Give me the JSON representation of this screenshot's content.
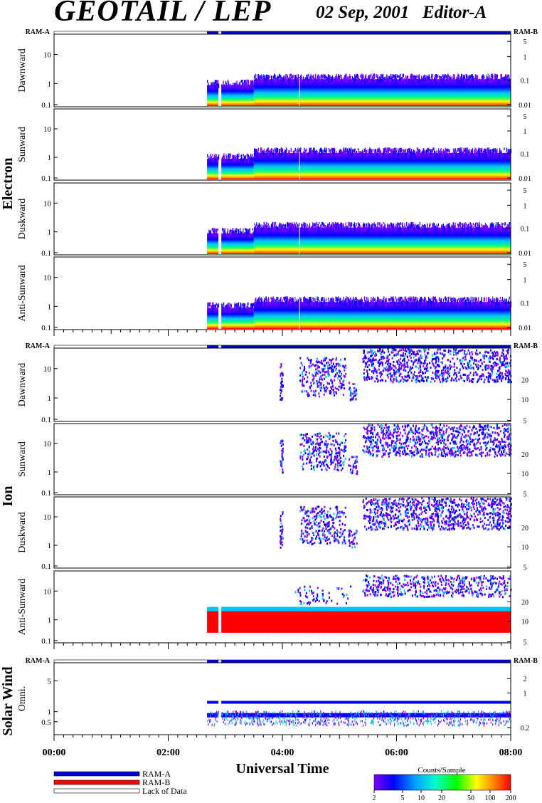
{
  "header": {
    "title": "GEOTAIL / LEP",
    "date_editor": "02 Sep, 2001   Editor-A"
  },
  "ram_labels": {
    "left": "RAM-A",
    "right": "RAM-B"
  },
  "groups": {
    "electron": "Electron",
    "ion": "Ion",
    "solar_wind": "Solar Wind"
  },
  "colors": {
    "ram_a": "#0000cc",
    "ram_b": "#ff0000",
    "spectrogram_scale": [
      "#8000ff",
      "#0000ff",
      "#00a0ff",
      "#00ffcc",
      "#00ff00",
      "#ffff00",
      "#ff8000",
      "#ff0000"
    ]
  },
  "chart_data": [
    {
      "type": "heatmap",
      "group": "Electron",
      "panels": [
        {
          "name": "Dawnward",
          "left_ticks": [
            "10",
            "1",
            "0.1"
          ],
          "right_ticks": [
            "5",
            "1",
            "0.1",
            "0.01"
          ]
        },
        {
          "name": "Sunward",
          "left_ticks": [
            "10",
            "1",
            "0.1"
          ],
          "right_ticks": [
            "5",
            "1",
            "0.1",
            "0.01"
          ]
        },
        {
          "name": "Duskward",
          "left_ticks": [
            "10",
            "1",
            "0.1"
          ],
          "right_ticks": [
            "5",
            "1",
            "0.1",
            "0.01"
          ]
        },
        {
          "name": "Anti-Sunward",
          "left_ticks": [
            "10",
            "1",
            "0.1"
          ],
          "right_ticks": [
            "5",
            "1",
            "0.1",
            "0.01"
          ]
        }
      ],
      "ram_bar": [
        {
          "from": 2.68,
          "to": 2.88,
          "mode": "RAM-A"
        },
        {
          "from": 2.93,
          "to": 8.0,
          "mode": "RAM-A"
        }
      ],
      "data_intervals": [
        [
          2.68,
          2.88
        ],
        [
          2.93,
          8.0
        ]
      ],
      "flux_cutoffs_hours": [
        3.5
      ]
    },
    {
      "type": "heatmap",
      "group": "Ion",
      "panels": [
        {
          "name": "Dawnward",
          "left_ticks": [
            "10",
            "1",
            "0.1"
          ],
          "right_ticks": [
            "20",
            "10",
            "5"
          ]
        },
        {
          "name": "Sunward",
          "left_ticks": [
            "10",
            "1",
            "0.1"
          ],
          "right_ticks": [
            "20",
            "10",
            "5"
          ]
        },
        {
          "name": "Duskward",
          "left_ticks": [
            "10",
            "1",
            "0.1"
          ],
          "right_ticks": [
            "20",
            "10",
            "5"
          ]
        },
        {
          "name": "Anti-Sunward",
          "left_ticks": [
            "10",
            "1",
            "0.1"
          ],
          "right_ticks": [
            "20",
            "10",
            "5"
          ]
        }
      ],
      "ram_bar": [
        {
          "from": 2.68,
          "to": 2.88,
          "mode": "RAM-A"
        },
        {
          "from": 2.93,
          "to": 8.0,
          "mode": "RAM-A"
        }
      ],
      "activity_onsets_hours": [
        3.95,
        5.4
      ]
    },
    {
      "type": "heatmap",
      "group": "Solar Wind",
      "panels": [
        {
          "name": "Omni.",
          "left_ticks": [
            "5",
            "1",
            "0.5"
          ],
          "right_ticks": [
            "2",
            "1",
            "0.2"
          ]
        }
      ],
      "ram_bar": [
        {
          "from": 2.68,
          "to": 2.88,
          "mode": "RAM-A"
        },
        {
          "from": 2.93,
          "to": 8.0,
          "mode": "RAM-A"
        }
      ]
    }
  ],
  "time_axis": {
    "title": "Universal Time",
    "ticks": [
      "00:00",
      "02:00",
      "04:00",
      "06:00",
      "08:00"
    ],
    "range_hours": [
      0,
      8
    ]
  },
  "legend": {
    "items": [
      {
        "label": "RAM-A",
        "color": "#0000cc"
      },
      {
        "label": "RAM-B",
        "color": "#ff0000"
      },
      {
        "label": "Lack of Data",
        "color": "#ffffff"
      }
    ]
  },
  "colorbar": {
    "title": "Counts/Sample",
    "ticks": [
      "2",
      "5",
      "10",
      "20",
      "50",
      "100",
      "200"
    ]
  }
}
